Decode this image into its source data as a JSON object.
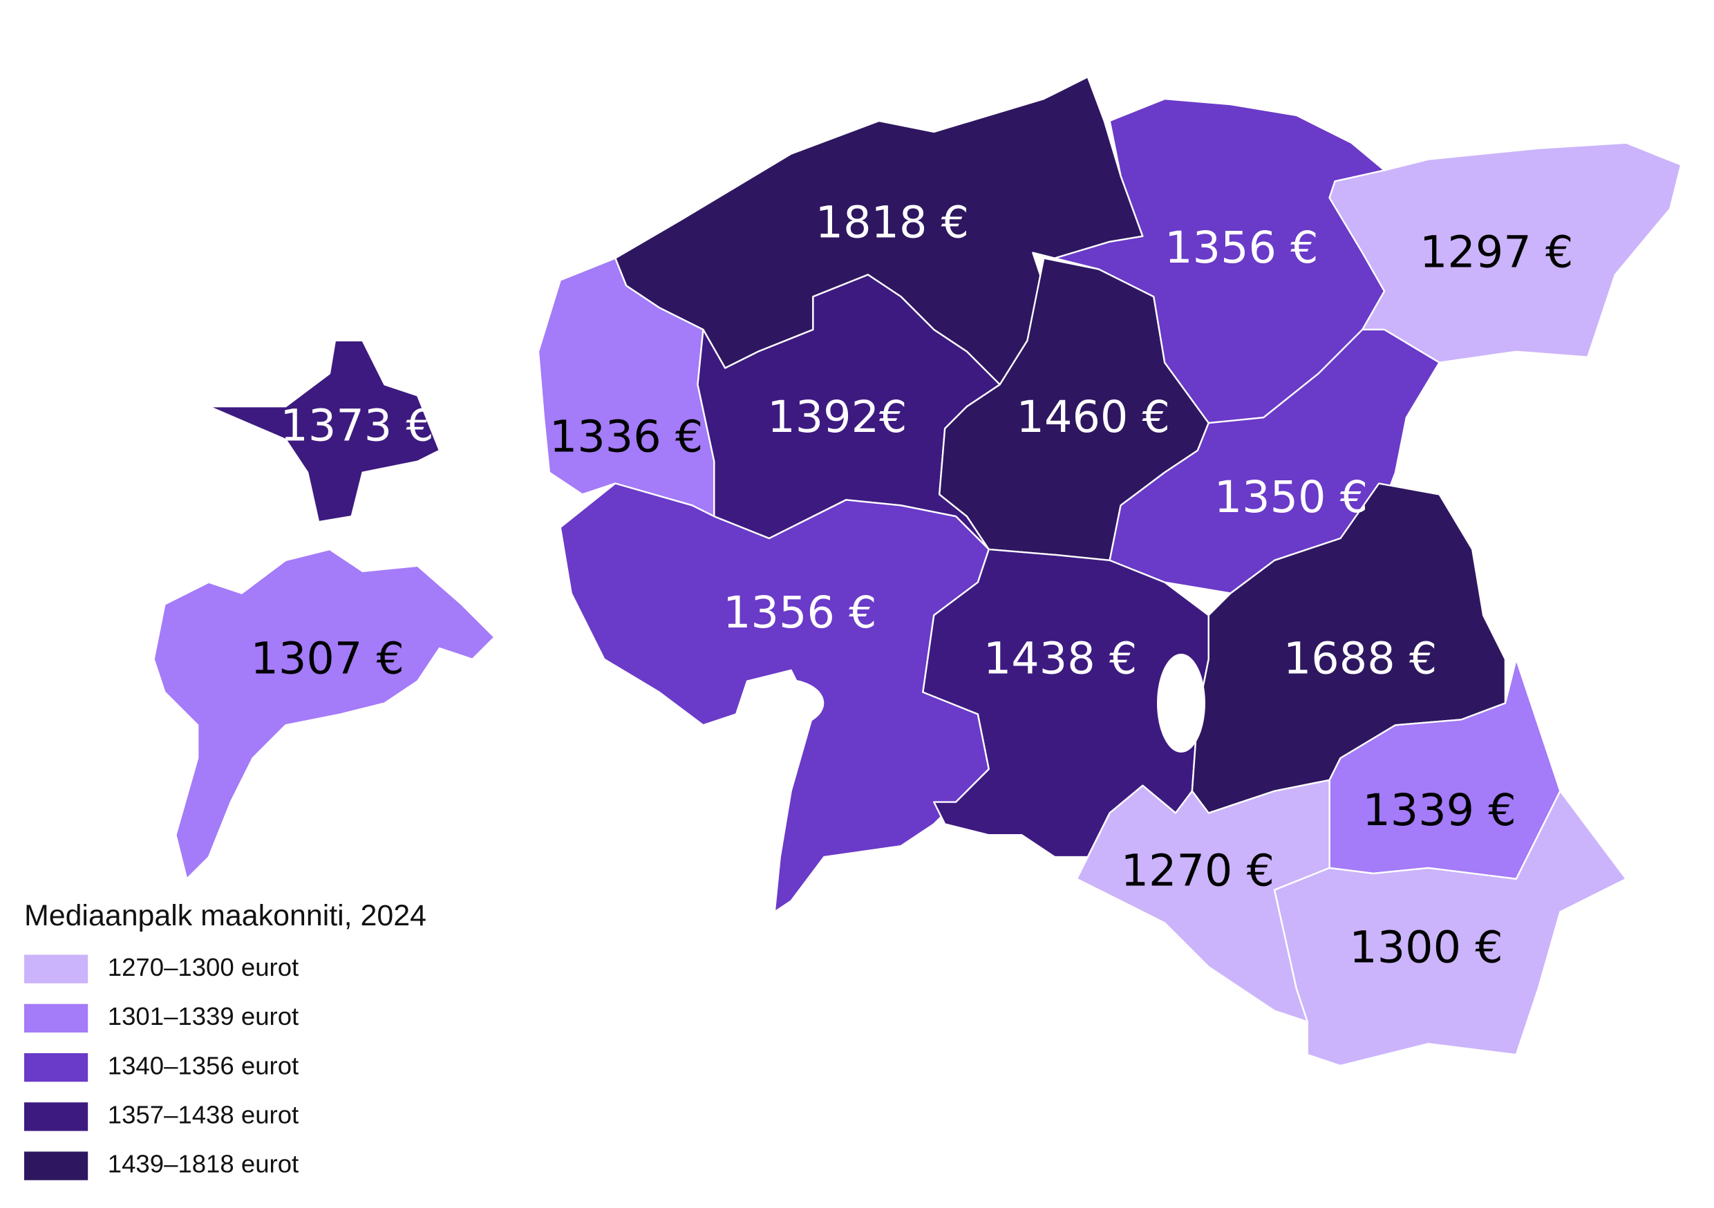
{
  "legend": {
    "title": "Mediaanpalk maakonniti, 2024",
    "items": [
      {
        "label": "1270–1300 eurot",
        "color": "#cbb4fb"
      },
      {
        "label": "1301–1339 eurot",
        "color": "#a47bf8"
      },
      {
        "label": "1340–1356 eurot",
        "color": "#6a3ac8"
      },
      {
        "label": "1357–1438 eurot",
        "color": "#3d1a80"
      },
      {
        "label": "1439–1818 eurot",
        "color": "#2e1760"
      }
    ]
  },
  "regions": [
    {
      "label": "1818 €",
      "color": "#2e1760",
      "label_color": "#ffffff"
    },
    {
      "label": "1356 €",
      "color": "#6a3ac8",
      "label_color": "#ffffff"
    },
    {
      "label": "1297 €",
      "color": "#cbb4fb",
      "label_color": "#000000"
    },
    {
      "label": "1373 €",
      "color": "#3d1a80",
      "label_color": "#ffffff"
    },
    {
      "label": "1336 €",
      "color": "#a47bf8",
      "label_color": "#000000"
    },
    {
      "label": "1392€",
      "color": "#3d1a80",
      "label_color": "#ffffff"
    },
    {
      "label": "1460 €",
      "color": "#2e1760",
      "label_color": "#ffffff"
    },
    {
      "label": "1350 €",
      "color": "#6a3ac8",
      "label_color": "#ffffff"
    },
    {
      "label": "1307 €",
      "color": "#a47bf8",
      "label_color": "#000000"
    },
    {
      "label": "1356 €",
      "color": "#6a3ac8",
      "label_color": "#ffffff"
    },
    {
      "label": "1438 €",
      "color": "#3d1a80",
      "label_color": "#ffffff"
    },
    {
      "label": "1688 €",
      "color": "#2e1760",
      "label_color": "#ffffff"
    },
    {
      "label": "1339 €",
      "color": "#a47bf8",
      "label_color": "#000000"
    },
    {
      "label": "1270 €",
      "color": "#cbb4fb",
      "label_color": "#000000"
    },
    {
      "label": "1300 €",
      "color": "#cbb4fb",
      "label_color": "#000000"
    }
  ]
}
